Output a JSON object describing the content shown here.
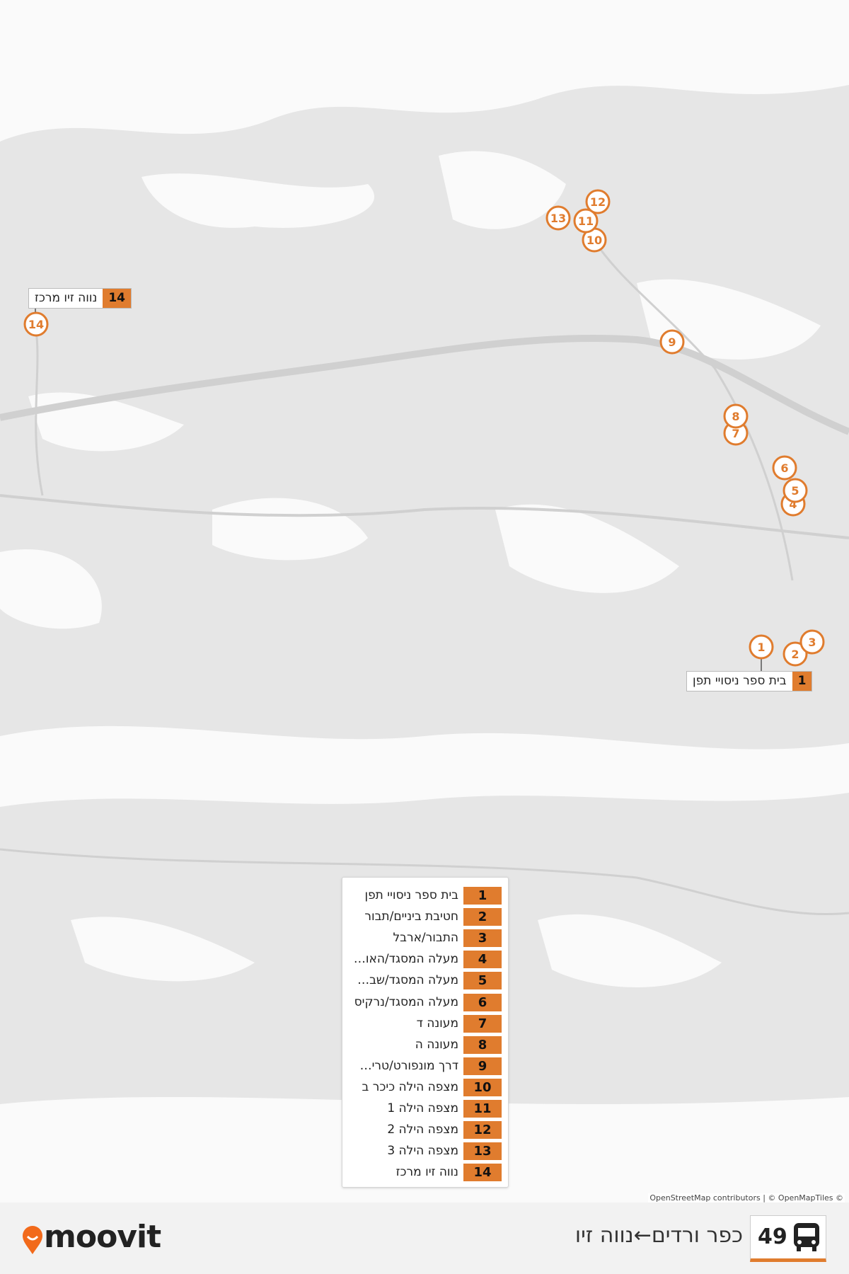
{
  "route": {
    "number": "49",
    "name": "כפר ורדים←נווה זיו"
  },
  "stops": [
    {
      "number": "1",
      "name": "בית ספר ניסויי תפן"
    },
    {
      "number": "2",
      "name": "חטיבת ביניים/תבור"
    },
    {
      "number": "3",
      "name": "התבור/ארבל"
    },
    {
      "number": "4",
      "name": "מעלה המסגד/האו…"
    },
    {
      "number": "5",
      "name": "מעלה המסגד/שב…"
    },
    {
      "number": "6",
      "name": "מעלה המסגד/נרקיס"
    },
    {
      "number": "7",
      "name": "מעונה ד"
    },
    {
      "number": "8",
      "name": "מעונה ה"
    },
    {
      "number": "9",
      "name": "דרך מונפורט/טרי…"
    },
    {
      "number": "10",
      "name": "מצפה הילה כיכר ב"
    },
    {
      "number": "11",
      "name": "מצפה הילה 1"
    },
    {
      "number": "12",
      "name": "מצפה הילה 2"
    },
    {
      "number": "13",
      "name": "מצפה הילה 3"
    },
    {
      "number": "14",
      "name": "נווה זיו מרכז"
    }
  ],
  "attribution": "OpenStreetMap contributors | © OpenMapTiles ©",
  "brand": "moovit"
}
